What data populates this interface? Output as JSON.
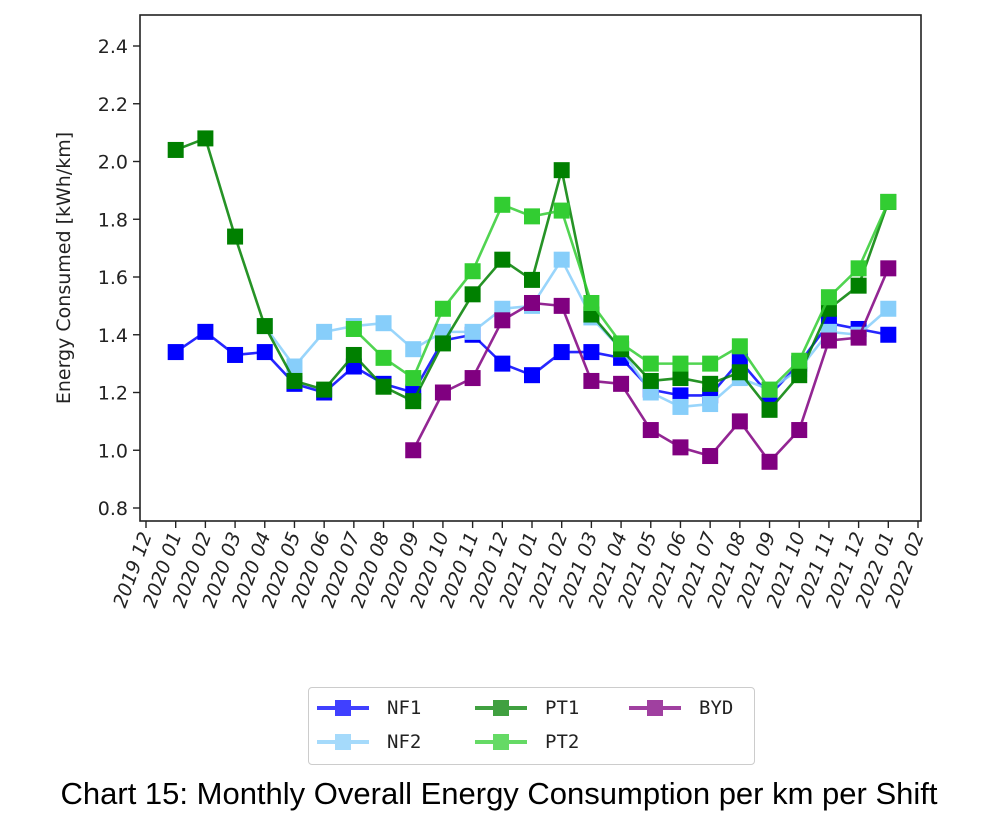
{
  "chart_data": {
    "type": "line",
    "title": "",
    "xlabel": "",
    "ylabel": "Energy Consumed [kWh/km]",
    "ylim": [
      0.75,
      2.5
    ],
    "yticks": [
      "0.8",
      "1.0",
      "1.2",
      "1.4",
      "1.6",
      "1.8",
      "2.0",
      "2.2",
      "2.4"
    ],
    "ytick_values": [
      0.8,
      1.0,
      1.2,
      1.4,
      1.6,
      1.8,
      2.0,
      2.2,
      2.4
    ],
    "xticks": [
      "2019 12",
      "2020 01",
      "2020 02",
      "2020 03",
      "2020 04",
      "2020 05",
      "2020 06",
      "2020 07",
      "2020 08",
      "2020 09",
      "2020 10",
      "2020 11",
      "2020 12",
      "2021 01",
      "2021 02",
      "2021 03",
      "2021 04",
      "2021 05",
      "2021 06",
      "2021 07",
      "2021 08",
      "2021 09",
      "2021 10",
      "2021 11",
      "2021 12",
      "2022 01",
      "2022 02"
    ],
    "x": [
      "2020 01",
      "2020 02",
      "2020 03",
      "2020 04",
      "2020 05",
      "2020 06",
      "2020 07",
      "2020 08",
      "2020 09",
      "2020 10",
      "2020 11",
      "2020 12",
      "2021 01",
      "2021 02",
      "2021 03",
      "2021 04",
      "2021 05",
      "2021 06",
      "2021 07",
      "2021 08",
      "2021 09",
      "2021 10",
      "2021 11",
      "2021 12",
      "2022 01"
    ],
    "grid": false,
    "legend_position": "below",
    "series": [
      {
        "name": "NF1",
        "color": "#0000ff",
        "values": [
          1.34,
          1.41,
          1.33,
          1.34,
          1.23,
          1.2,
          1.29,
          1.23,
          1.2,
          1.38,
          1.4,
          1.3,
          1.26,
          1.34,
          1.34,
          1.32,
          1.21,
          1.19,
          1.19,
          1.31,
          1.19,
          1.3,
          1.44,
          1.42,
          1.4
        ]
      },
      {
        "name": "NF2",
        "color": "#87cefa",
        "values": [
          null,
          null,
          null,
          1.43,
          1.29,
          1.41,
          1.43,
          1.44,
          1.35,
          1.41,
          1.41,
          1.49,
          1.5,
          1.66,
          1.46,
          1.35,
          1.2,
          1.15,
          1.16,
          1.25,
          1.21,
          1.28,
          1.41,
          1.4,
          1.49
        ]
      },
      {
        "name": "PT1",
        "color": "#008000",
        "values": [
          2.04,
          2.08,
          1.74,
          1.43,
          1.24,
          1.21,
          1.33,
          1.22,
          1.17,
          1.37,
          1.54,
          1.66,
          1.59,
          1.97,
          1.47,
          1.35,
          1.24,
          1.25,
          1.23,
          1.27,
          1.14,
          1.26,
          1.49,
          1.57,
          1.86
        ]
      },
      {
        "name": "PT2",
        "color": "#32cd32",
        "values": [
          null,
          null,
          null,
          null,
          null,
          null,
          1.42,
          1.32,
          1.25,
          1.49,
          1.62,
          1.85,
          1.81,
          1.83,
          1.51,
          1.37,
          1.3,
          1.3,
          1.3,
          1.36,
          1.21,
          1.31,
          1.53,
          1.63,
          1.86
        ]
      },
      {
        "name": "BYD",
        "color": "#800080",
        "values": [
          null,
          null,
          null,
          null,
          null,
          null,
          null,
          null,
          1.0,
          1.2,
          1.25,
          1.45,
          1.51,
          1.5,
          1.24,
          1.23,
          1.07,
          1.01,
          0.98,
          1.1,
          0.96,
          1.07,
          1.38,
          1.39,
          1.63
        ]
      }
    ]
  },
  "legend": {
    "items": [
      {
        "label": "NF1",
        "color": "#0000ff"
      },
      {
        "label": "NF2",
        "color": "#87cefa"
      },
      {
        "label": "PT1",
        "color": "#008000"
      },
      {
        "label": "PT2",
        "color": "#32cd32"
      },
      {
        "label": "BYD",
        "color": "#800080"
      }
    ]
  },
  "caption": "Chart 15: Monthly Overall Energy Consumption per km per Shift"
}
